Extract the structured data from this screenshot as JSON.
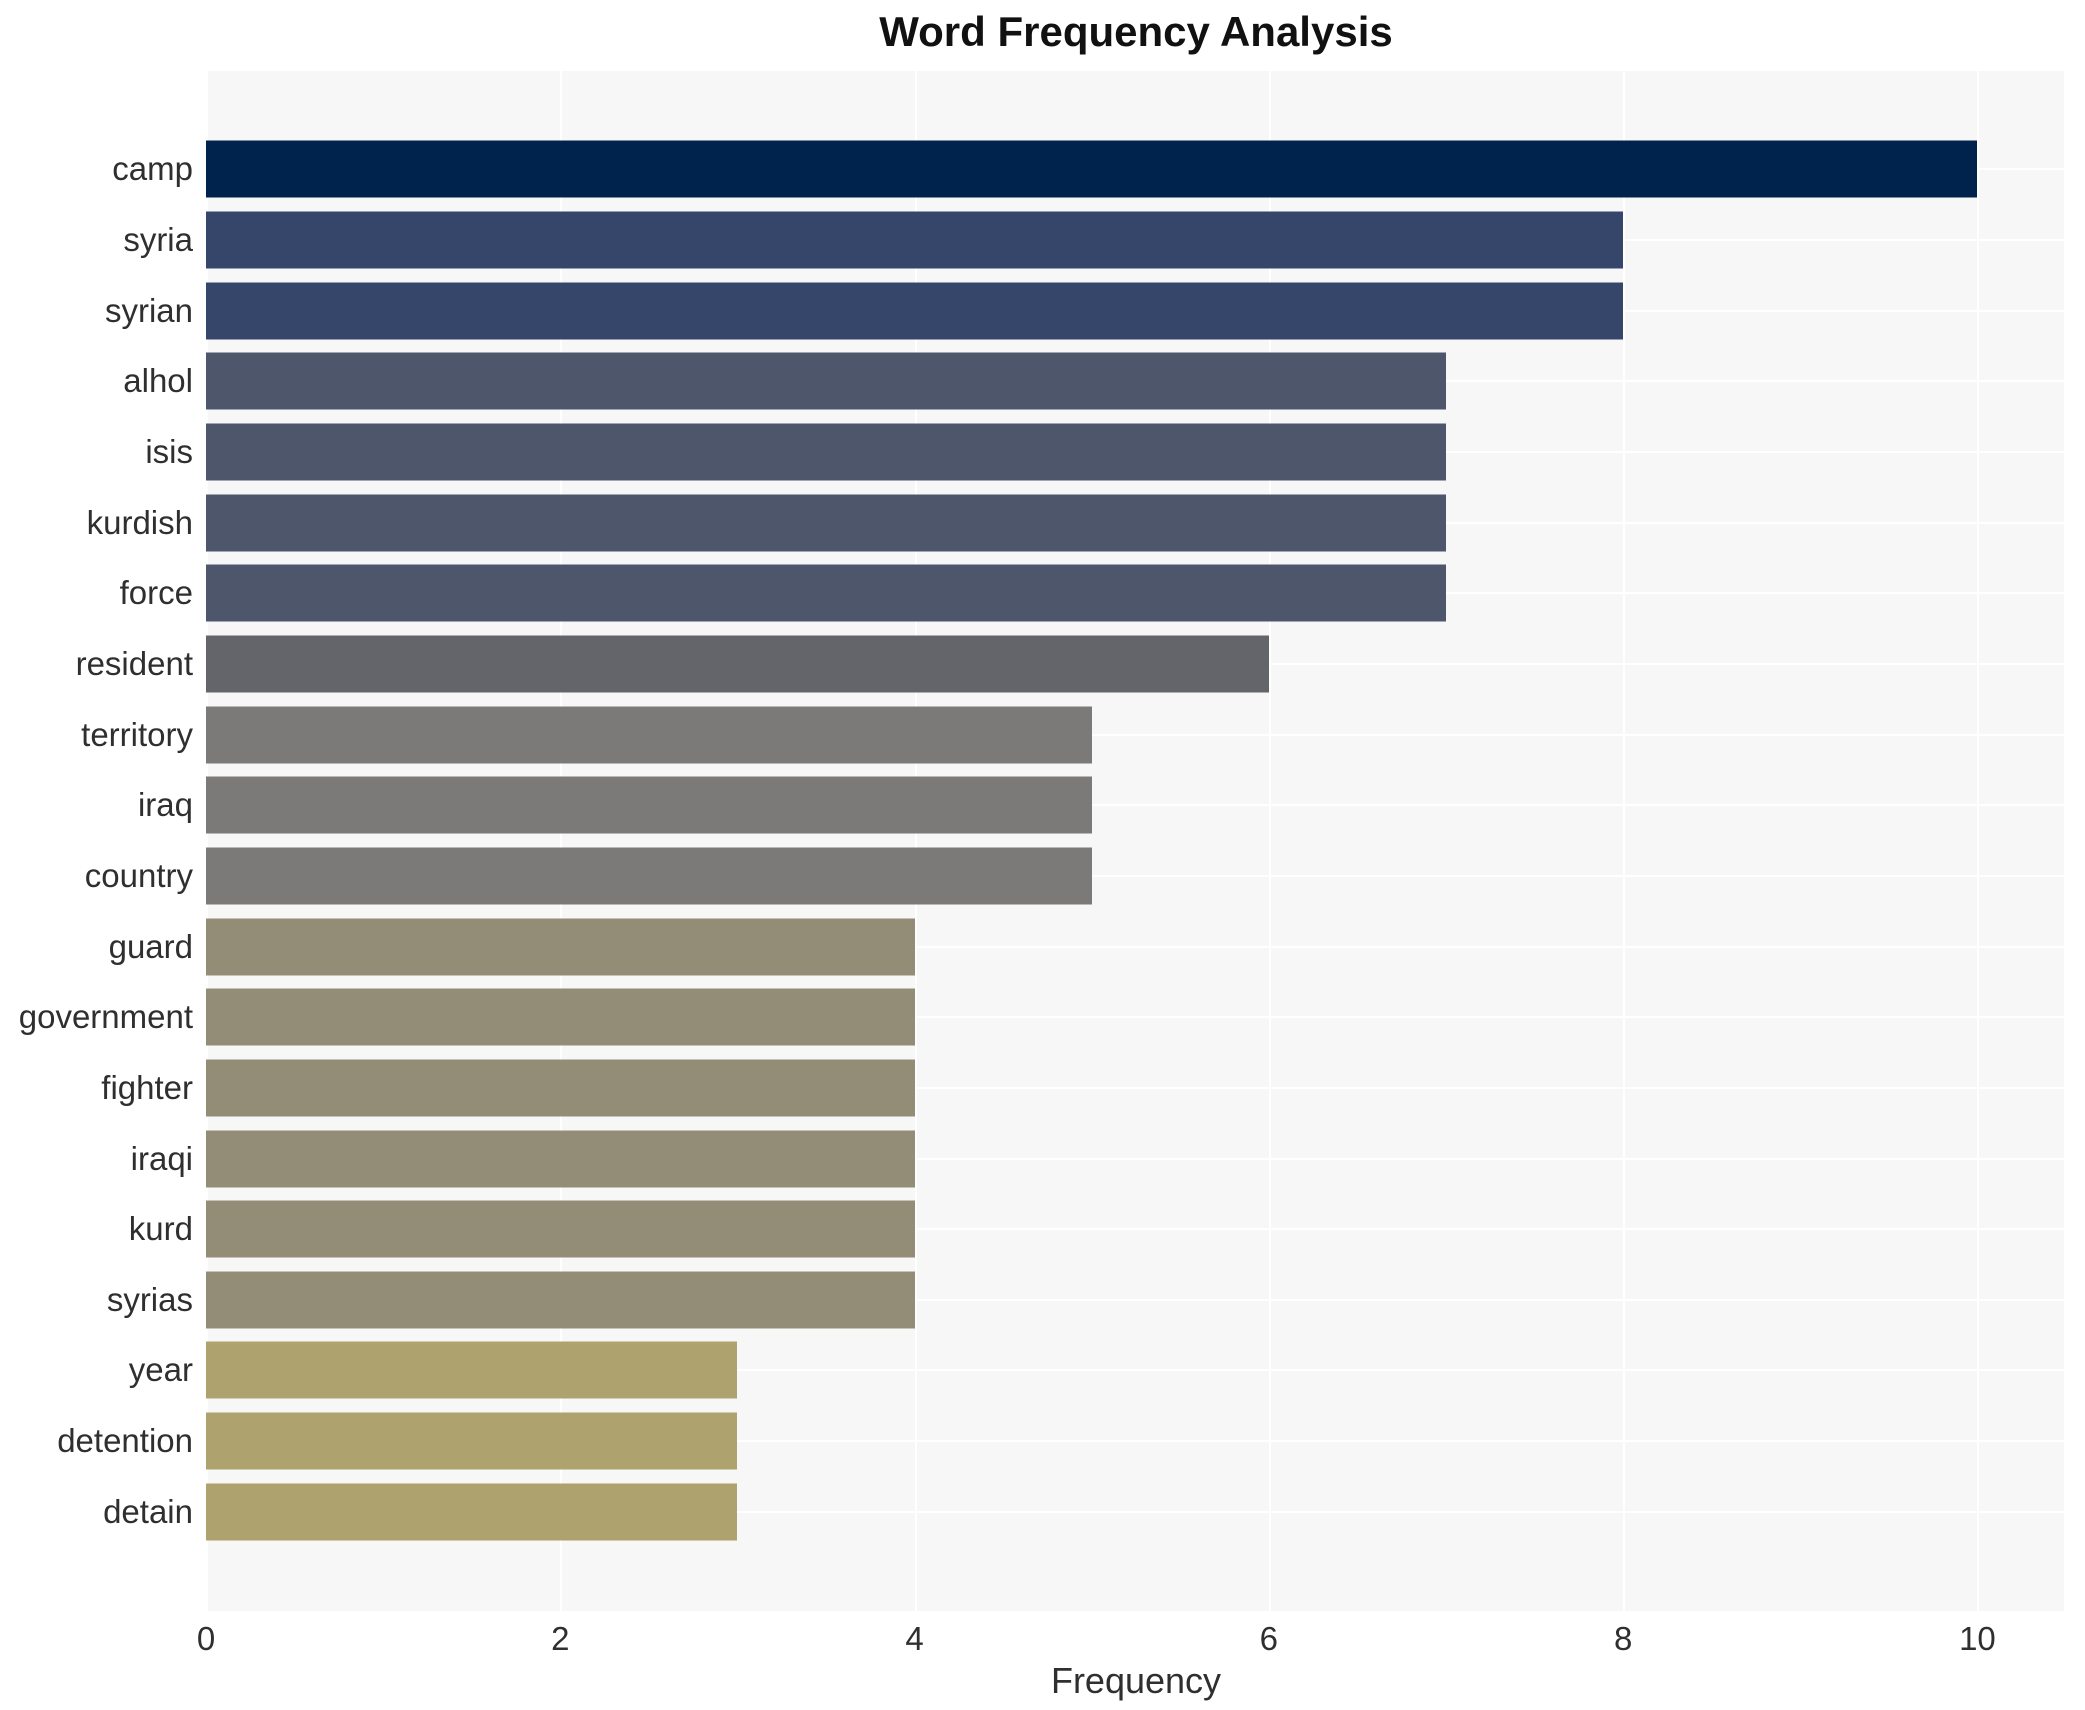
{
  "chart_data": {
    "type": "bar",
    "orientation": "horizontal",
    "title": "Word Frequency Analysis",
    "xlabel": "Frequency",
    "ylabel": "",
    "xlim": [
      0,
      10.5
    ],
    "xticks": [
      0,
      2,
      4,
      6,
      8,
      10
    ],
    "grid": true,
    "legend": "none",
    "categories": [
      "camp",
      "syria",
      "syrian",
      "alhol",
      "isis",
      "kurdish",
      "force",
      "resident",
      "territory",
      "iraq",
      "country",
      "guard",
      "government",
      "fighter",
      "iraqi",
      "kurd",
      "syrias",
      "year",
      "detention",
      "detain"
    ],
    "values": [
      10,
      8,
      8,
      7,
      7,
      7,
      7,
      6,
      5,
      5,
      5,
      4,
      4,
      4,
      4,
      4,
      4,
      3,
      3,
      3
    ],
    "bars": [
      {
        "label": "camp",
        "value": 10,
        "color": "#00234e"
      },
      {
        "label": "syria",
        "value": 8,
        "color": "#36466b"
      },
      {
        "label": "syrian",
        "value": 8,
        "color": "#36466b"
      },
      {
        "label": "alhol",
        "value": 7,
        "color": "#4e566c"
      },
      {
        "label": "isis",
        "value": 7,
        "color": "#4e566c"
      },
      {
        "label": "kurdish",
        "value": 7,
        "color": "#4e566c"
      },
      {
        "label": "force",
        "value": 7,
        "color": "#4e566c"
      },
      {
        "label": "resident",
        "value": 6,
        "color": "#63656a"
      },
      {
        "label": "territory",
        "value": 5,
        "color": "#7b7a78"
      },
      {
        "label": "iraq",
        "value": 5,
        "color": "#7b7a78"
      },
      {
        "label": "country",
        "value": 5,
        "color": "#7b7a78"
      },
      {
        "label": "guard",
        "value": 4,
        "color": "#938d77"
      },
      {
        "label": "government",
        "value": 4,
        "color": "#938d77"
      },
      {
        "label": "fighter",
        "value": 4,
        "color": "#938d77"
      },
      {
        "label": "iraqi",
        "value": 4,
        "color": "#938d77"
      },
      {
        "label": "kurd",
        "value": 4,
        "color": "#938d77"
      },
      {
        "label": "syrias",
        "value": 4,
        "color": "#938d77"
      },
      {
        "label": "year",
        "value": 3,
        "color": "#aea26e"
      },
      {
        "label": "detention",
        "value": 3,
        "color": "#aea26e"
      },
      {
        "label": "detain",
        "value": 3,
        "color": "#aea26e"
      }
    ],
    "colors": {
      "page_background": "#ffffff",
      "plot_background": "#f7f7f7",
      "gridline": "#ffffff",
      "text": "#2f2f2f",
      "title_text": "#111111"
    }
  }
}
